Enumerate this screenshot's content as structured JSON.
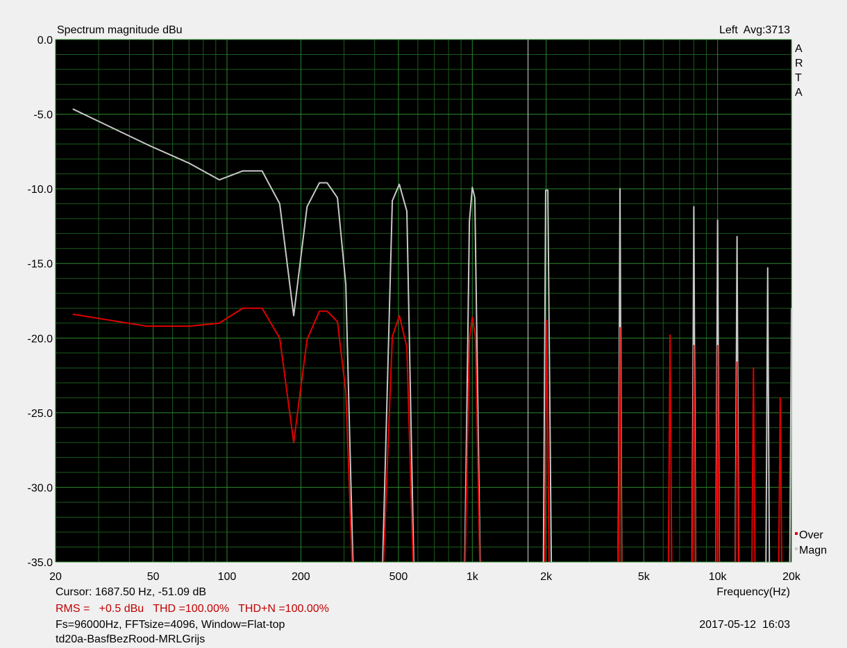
{
  "chart_data": {
    "type": "line",
    "title": "Spectrum magnitude dBu",
    "channel_label": "Left  Avg:3713",
    "side_label": [
      "A",
      "R",
      "T",
      "A"
    ],
    "xlabel": "Frequency(Hz)",
    "x_scale": "log",
    "xlim": [
      20,
      20000
    ],
    "ylim": [
      -35,
      0
    ],
    "xticks": [
      20,
      50,
      100,
      200,
      500,
      {
        "value": 1000,
        "label": "1k"
      },
      {
        "value": 2000,
        "label": "2k"
      },
      {
        "value": 5000,
        "label": "5k"
      },
      {
        "value": 10000,
        "label": "10k"
      },
      {
        "value": 20000,
        "label": "20k"
      }
    ],
    "yticks": [
      {
        "value": 0,
        "label": "0.0"
      },
      {
        "value": -5,
        "label": "-5.0"
      },
      {
        "value": -10,
        "label": "-10.0"
      },
      {
        "value": -15,
        "label": "-15.0"
      },
      {
        "value": -20,
        "label": "-20.0"
      },
      {
        "value": -25,
        "label": "-25.0"
      },
      {
        "value": -30,
        "label": "-30.0"
      },
      {
        "value": -35,
        "label": "-35.0"
      }
    ],
    "x_minor_grid": [
      30,
      40,
      60,
      70,
      80,
      90,
      300,
      400,
      600,
      700,
      800,
      900,
      3000,
      4000,
      6000,
      7000,
      8000,
      9000
    ],
    "y_minor_grid": [
      -1,
      -2,
      -3,
      -4,
      -6,
      -7,
      -8,
      -9,
      -11,
      -12,
      -13,
      -14,
      -16,
      -17,
      -18,
      -19,
      -21,
      -22,
      -23,
      -24,
      -26,
      -27,
      -28,
      -29,
      -31,
      -32,
      -33,
      -34
    ],
    "grid": true,
    "cursor": {
      "x": 1687.5,
      "label": "Cursor: 1687.50 Hz, -51.09 dB"
    },
    "legend_position": "lower right outside",
    "series": [
      {
        "name": "Over",
        "color": "#e00000",
        "x": [
          23.5,
          47,
          70.4,
          93,
          116,
          139,
          164,
          187,
          212,
          238,
          256,
          282,
          305,
          332,
          423,
          472,
          504,
          541,
          585,
          923,
          973,
          1000,
          1030,
          1087,
          1960,
          2010,
          2070,
          3920,
          4000,
          4080,
          6270,
          6400,
          6530,
          7840,
          8000,
          8160,
          9800,
          10000,
          10200,
          11760,
          12000,
          12240,
          13720,
          14000,
          14280,
          17640,
          18000,
          18360
        ],
        "values": [
          -18.4,
          -19.2,
          -19.2,
          -19.0,
          -18.0,
          -18.0,
          -20.0,
          -27.0,
          -20.1,
          -18.2,
          -18.2,
          -18.9,
          -23.6,
          -40,
          -40,
          -19.9,
          -18.5,
          -20.6,
          -40,
          -40,
          -20.1,
          -18.6,
          -19.9,
          -40,
          -40,
          -18.8,
          -40,
          -40,
          -19.3,
          -40,
          -40,
          -19.8,
          -40,
          -40,
          -20.5,
          -40,
          -40,
          -20.5,
          -40,
          -40,
          -21.6,
          -40,
          -40,
          -22.0,
          -40,
          -40,
          -24.0,
          -40
        ]
      },
      {
        "name": "Magn",
        "color": "#c8c8c8",
        "x": [
          23.5,
          48.2,
          70.4,
          93.1,
          116,
          139,
          164,
          187,
          212,
          238,
          256,
          282,
          305,
          332,
          423,
          472,
          504,
          541,
          585,
          923,
          973,
          1000,
          1024,
          1087,
          1941,
          1991,
          2032,
          2113,
          3920,
          4000,
          4080,
          7840,
          8000,
          8160,
          9800,
          10000,
          10200,
          11760,
          12000,
          12240,
          15680,
          16000,
          16320,
          19600,
          20000
        ],
        "values": [
          -4.65,
          -7.1,
          -8.3,
          -9.4,
          -8.8,
          -8.8,
          -11.0,
          -18.5,
          -11.2,
          -9.6,
          -9.6,
          -10.6,
          -16.4,
          -40,
          -40,
          -10.8,
          -9.7,
          -11.5,
          -40,
          -40,
          -12.2,
          -9.9,
          -10.6,
          -40,
          -40,
          -10.1,
          -10.1,
          -40,
          -40,
          -10.0,
          -40,
          -40,
          -11.2,
          -40,
          -40,
          -12.1,
          -40,
          -40,
          -13.2,
          -40,
          -40,
          -15.3,
          -40,
          -40,
          -18.0
        ]
      }
    ],
    "footer": {
      "measurement": "RMS =   +0.5 dBu   THD =100.00%   THD+N =100.00%",
      "settings": "Fs=96000Hz, FFTsize=4096, Window=Flat-top",
      "timestamp": "2017-05-12  16:03",
      "file": "td20a-BasfBezRood-MRLGrijs"
    }
  }
}
